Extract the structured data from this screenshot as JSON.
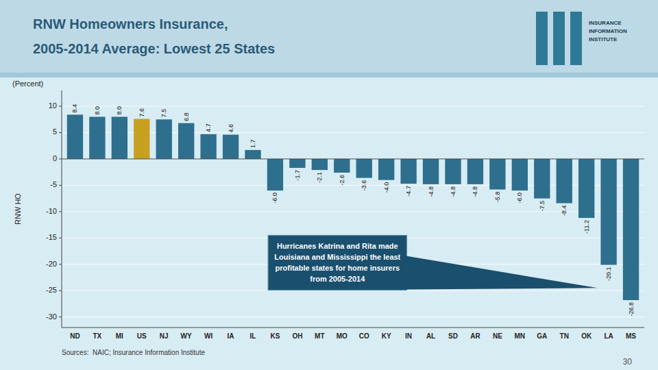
{
  "chart_data": {
    "type": "bar",
    "title": "RNW Homeowners Insurance,",
    "subtitle": "2005-2014 Average: Lowest 25 States",
    "y_label": "RNW HO",
    "categories": [
      "ND",
      "TX",
      "MI",
      "US",
      "NJ",
      "WY",
      "WI",
      "IA",
      "IL",
      "KS",
      "OH",
      "MT",
      "MO",
      "CO",
      "KY",
      "IN",
      "AL",
      "SD",
      "AR",
      "NE",
      "MN",
      "GA",
      "TN",
      "OK",
      "LA",
      "MS"
    ],
    "values": [
      8.4,
      8.0,
      8.0,
      7.6,
      7.5,
      6.8,
      4.7,
      4.6,
      1.7,
      -6.0,
      -1.7,
      -2.1,
      -2.6,
      -3.6,
      -4.0,
      -4.7,
      -4.8,
      -4.8,
      -4.8,
      -5.8,
      -6.0,
      -7.5,
      -8.4,
      -11.2,
      -20.1,
      -26.8
    ],
    "value_labels": [
      "8.4",
      "8.0",
      "8.0",
      "7.6",
      "7.5",
      "6.8",
      "4.7",
      "4.6",
      "1.7",
      "-6.0",
      "-1.7",
      "-2.1",
      "-2.6",
      "-3.6",
      "-4.0",
      "-4.7",
      "-4.8",
      "-4.8",
      "-4.8",
      "-5.8",
      "-6.0",
      "-7.5",
      "-8.4",
      "-11.2",
      "-20.1",
      "-26.8"
    ],
    "colors": [
      "#2e6f8e",
      "#2e6f8e",
      "#2e6f8e",
      "#c8a020",
      "#2e6f8e",
      "#2e6f8e",
      "#2e6f8e",
      "#2e6f8e",
      "#2e6f8e",
      "#2e6f8e",
      "#2e6f8e",
      "#2e6f8e",
      "#2e6f8e",
      "#2e6f8e",
      "#2e6f8e",
      "#2e6f8e",
      "#2e6f8e",
      "#2e6f8e",
      "#2e6f8e",
      "#2e6f8e",
      "#2e6f8e",
      "#2e6f8e",
      "#2e6f8e",
      "#2e6f8e",
      "#2e6f8e",
      "#2e6f8e"
    ],
    "ylim": [
      -32,
      13
    ],
    "yticks": [
      -30,
      -25,
      -20,
      -15,
      -10,
      -5,
      0,
      5,
      10
    ],
    "grid": true,
    "data_labels": true,
    "annotations": [
      "(Percent)",
      "Hurricanes Katrina and Rita made\nLouisiana and Mississippi the least\nprofitable states for home insurers\nfrom 2005-2014",
      "Sources:  NAIC; Insurance Information Institute",
      "30",
      "INSURANCE\nINFORMATION\nINSTITUTE"
    ]
  }
}
